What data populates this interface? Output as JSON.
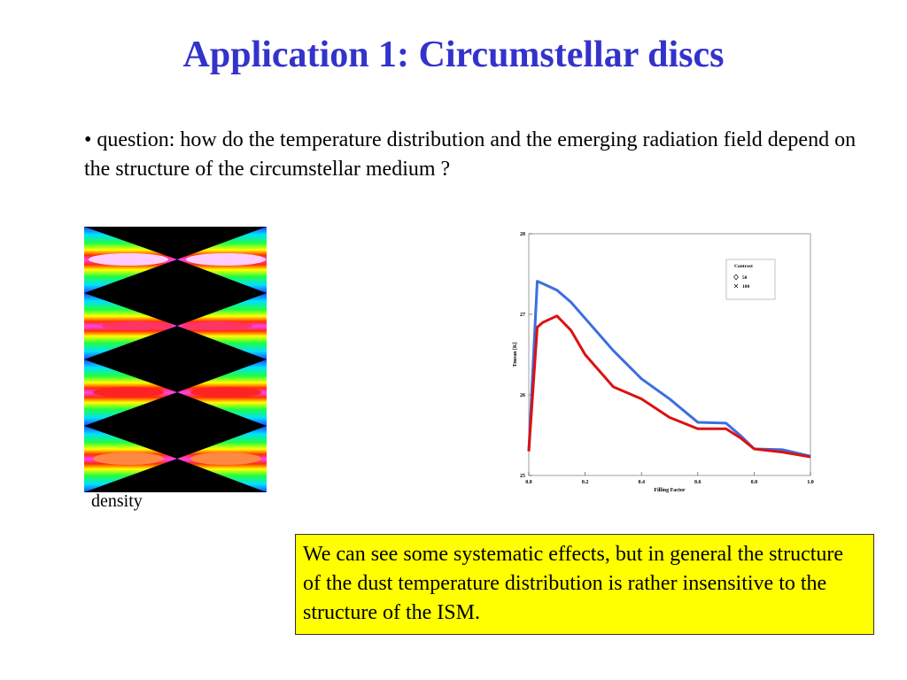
{
  "title": "Application 1: Circumstellar discs",
  "bullet": "• question: how do the temperature distribution and the emerging radiation field depend on the structure of the circumstellar medium ?",
  "image_caption": "density",
  "note": "We can see some systematic effects, but in general the structure of the dust temperature distribution is rather insensitive to the structure of the ISM.",
  "chart_data": {
    "type": "line",
    "xlabel": "Filling Factor",
    "ylabel": "Tmean [K]",
    "legend_title": "Contrast",
    "legend": "upper right",
    "x": [
      0,
      0.03,
      0.05,
      0.1,
      0.15,
      0.2,
      0.3,
      0.4,
      0.5,
      0.6,
      0.7,
      0.75,
      0.8,
      0.9,
      1.0
    ],
    "series": [
      {
        "name": "50",
        "color": "#3a6fe0",
        "values": [
          25.3,
          27.41,
          27.38,
          27.3,
          27.15,
          26.95,
          26.55,
          26.2,
          25.95,
          25.66,
          25.65,
          25.5,
          25.33,
          25.32,
          25.24
        ]
      },
      {
        "name": "100",
        "color": "#dd1111",
        "values": [
          25.3,
          26.84,
          26.9,
          26.98,
          26.8,
          26.5,
          26.1,
          25.95,
          25.72,
          25.58,
          25.58,
          25.47,
          25.33,
          25.29,
          25.23
        ]
      }
    ],
    "xlim": [
      0,
      1.0
    ],
    "xticks": [
      {
        "value": 0,
        "label": "0.0"
      },
      0.2,
      0.4,
      0.6,
      0.8,
      {
        "value": 1.0,
        "label": "1.0"
      }
    ],
    "ylim": [
      25,
      28
    ],
    "yticks": [
      25,
      26,
      27,
      28
    ]
  }
}
